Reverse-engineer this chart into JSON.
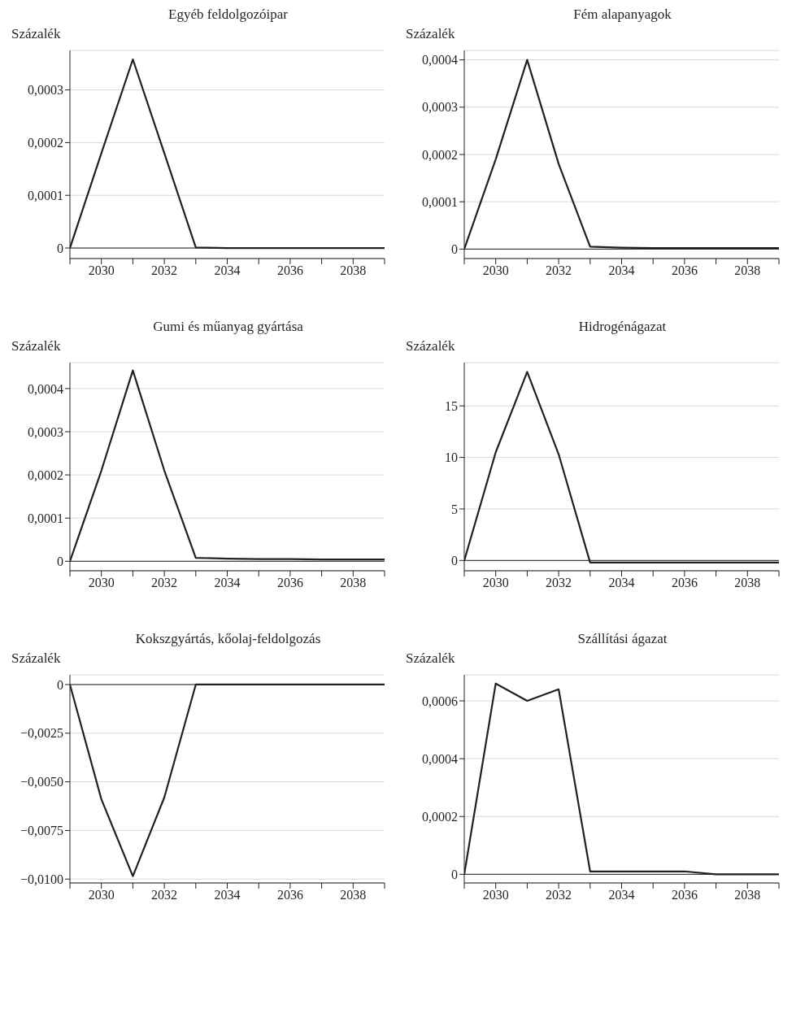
{
  "chart_data": [
    {
      "type": "line",
      "title": "Egyéb feldolgozóipar",
      "ylabel": "Százalék",
      "x": [
        2029,
        2030,
        2031,
        2032,
        2033,
        2034,
        2035,
        2036,
        2037,
        2038,
        2039
      ],
      "color": "#231f20",
      "values": [
        0,
        0.00018,
        0.000358,
        0.00018,
        1e-06,
        0,
        0,
        0,
        0,
        0,
        0
      ],
      "xlim": [
        2029,
        2039
      ],
      "xticks": [
        {
          "value": 2029,
          "label": null
        },
        2030,
        {
          "value": 2031,
          "label": null
        },
        2032,
        {
          "value": 2033,
          "label": null
        },
        2034,
        {
          "value": 2035,
          "label": null
        },
        2036,
        {
          "value": 2037,
          "label": null
        },
        2038,
        {
          "value": 2039,
          "label": null
        }
      ],
      "ylim": [
        -2e-05,
        0.000375
      ],
      "yticks": [
        0,
        {
          "value": 0.0001,
          "label": "0,0001"
        },
        {
          "value": 0.0002,
          "label": "0,0002"
        },
        {
          "value": 0.0003,
          "label": "0,0003"
        }
      ],
      "grid": "y",
      "legend": false,
      "marker": "none",
      "line_style": "solid",
      "ref_lines": [
        {
          "axis": "y",
          "value": 0,
          "color": "#231f20"
        }
      ]
    },
    {
      "type": "line",
      "title": "Fém alapanyagok",
      "ylabel": "Százalék",
      "x": [
        2029,
        2030,
        2031,
        2032,
        2033,
        2034,
        2035,
        2036,
        2037,
        2038,
        2039
      ],
      "color": "#231f20",
      "values": [
        0,
        0.00019,
        0.0004,
        0.00018,
        5e-06,
        3e-06,
        2e-06,
        2e-06,
        2e-06,
        2e-06,
        2e-06
      ],
      "xlim": [
        2029,
        2039
      ],
      "xticks": [
        {
          "value": 2029,
          "label": null
        },
        2030,
        {
          "value": 2031,
          "label": null
        },
        2032,
        {
          "value": 2033,
          "label": null
        },
        2034,
        {
          "value": 2035,
          "label": null
        },
        2036,
        {
          "value": 2037,
          "label": null
        },
        2038,
        {
          "value": 2039,
          "label": null
        }
      ],
      "ylim": [
        -2e-05,
        0.00042
      ],
      "yticks": [
        0,
        {
          "value": 0.0001,
          "label": "0,0001"
        },
        {
          "value": 0.0002,
          "label": "0,0002"
        },
        {
          "value": 0.0003,
          "label": "0,0003"
        },
        {
          "value": 0.0004,
          "label": "0,0004"
        }
      ],
      "grid": "y",
      "legend": false,
      "marker": "none",
      "line_style": "solid",
      "ref_lines": [
        {
          "axis": "y",
          "value": 0,
          "color": "#231f20"
        }
      ]
    },
    {
      "type": "line",
      "title": "Gumi és műanyag gyártása",
      "ylabel": "Százalék",
      "x": [
        2029,
        2030,
        2031,
        2032,
        2033,
        2034,
        2035,
        2036,
        2037,
        2038,
        2039
      ],
      "color": "#231f20",
      "values": [
        0,
        0.00021,
        0.000442,
        0.00021,
        8e-06,
        6e-06,
        5e-06,
        5e-06,
        4e-06,
        4e-06,
        4e-06
      ],
      "xlim": [
        2029,
        2039
      ],
      "xticks": [
        {
          "value": 2029,
          "label": null
        },
        2030,
        {
          "value": 2031,
          "label": null
        },
        2032,
        {
          "value": 2033,
          "label": null
        },
        2034,
        {
          "value": 2035,
          "label": null
        },
        2036,
        {
          "value": 2037,
          "label": null
        },
        2038,
        {
          "value": 2039,
          "label": null
        }
      ],
      "ylim": [
        -2.2e-05,
        0.00046
      ],
      "yticks": [
        0,
        {
          "value": 0.0001,
          "label": "0,0001"
        },
        {
          "value": 0.0002,
          "label": "0,0002"
        },
        {
          "value": 0.0003,
          "label": "0,0003"
        },
        {
          "value": 0.0004,
          "label": "0,0004"
        }
      ],
      "grid": "y",
      "legend": false,
      "marker": "none",
      "line_style": "solid",
      "ref_lines": [
        {
          "axis": "y",
          "value": 0,
          "color": "#231f20"
        }
      ]
    },
    {
      "type": "line",
      "title": "Hidrogénágazat",
      "ylabel": "Százalék",
      "x": [
        2029,
        2030,
        2031,
        2032,
        2033,
        2034,
        2035,
        2036,
        2037,
        2038,
        2039
      ],
      "color": "#231f20",
      "values": [
        0,
        10.5,
        18.3,
        10.3,
        -0.2,
        -0.2,
        -0.2,
        -0.2,
        -0.2,
        -0.2,
        -0.2
      ],
      "xlim": [
        2029,
        2039
      ],
      "xticks": [
        {
          "value": 2029,
          "label": null
        },
        2030,
        {
          "value": 2031,
          "label": null
        },
        2032,
        {
          "value": 2033,
          "label": null
        },
        2034,
        {
          "value": 2035,
          "label": null
        },
        2036,
        {
          "value": 2037,
          "label": null
        },
        2038,
        {
          "value": 2039,
          "label": null
        }
      ],
      "ylim": [
        -1,
        19.2
      ],
      "yticks": [
        0,
        5,
        10,
        15
      ],
      "grid": "y",
      "legend": false,
      "marker": "none",
      "line_style": "solid",
      "ref_lines": [
        {
          "axis": "y",
          "value": 0,
          "color": "#231f20"
        }
      ]
    },
    {
      "type": "line",
      "title": "Kokszgyártás, kőolaj-feldolgozás",
      "ylabel": "Százalék",
      "x": [
        2029,
        2030,
        2031,
        2032,
        2033,
        2034,
        2035,
        2036,
        2037,
        2038,
        2039
      ],
      "color": "#231f20",
      "values": [
        0,
        -0.0059,
        -0.00985,
        -0.0058,
        0,
        0,
        0,
        0,
        0,
        0,
        0
      ],
      "xlim": [
        2029,
        2039
      ],
      "xticks": [
        {
          "value": 2029,
          "label": null
        },
        2030,
        {
          "value": 2031,
          "label": null
        },
        2032,
        {
          "value": 2033,
          "label": null
        },
        2034,
        {
          "value": 2035,
          "label": null
        },
        2036,
        {
          "value": 2037,
          "label": null
        },
        2038,
        {
          "value": 2039,
          "label": null
        }
      ],
      "ylim": [
        -0.0102,
        0.0005
      ],
      "yticks": [
        {
          "value": -0.01,
          "label": "−0,0100"
        },
        {
          "value": -0.0075,
          "label": "−0,0075"
        },
        {
          "value": -0.005,
          "label": "−0,0050"
        },
        {
          "value": -0.0025,
          "label": "−0,0025"
        },
        0
      ],
      "grid": "y",
      "legend": false,
      "marker": "none",
      "line_style": "solid",
      "ref_lines": [
        {
          "axis": "y",
          "value": 0,
          "color": "#231f20"
        }
      ]
    },
    {
      "type": "line",
      "title": "Szállítási ágazat",
      "ylabel": "Százalék",
      "x": [
        2029,
        2030,
        2031,
        2032,
        2033,
        2034,
        2035,
        2036,
        2037,
        2038,
        2039
      ],
      "color": "#231f20",
      "values": [
        0,
        0.00066,
        0.0006,
        0.00064,
        1e-05,
        1e-05,
        1e-05,
        1e-05,
        0,
        0,
        0
      ],
      "xlim": [
        2029,
        2039
      ],
      "xticks": [
        {
          "value": 2029,
          "label": null
        },
        2030,
        {
          "value": 2031,
          "label": null
        },
        2032,
        {
          "value": 2033,
          "label": null
        },
        2034,
        {
          "value": 2035,
          "label": null
        },
        2036,
        {
          "value": 2037,
          "label": null
        },
        2038,
        {
          "value": 2039,
          "label": null
        }
      ],
      "ylim": [
        -3e-05,
        0.00069
      ],
      "yticks": [
        0,
        {
          "value": 0.0002,
          "label": "0,0002"
        },
        {
          "value": 0.0004,
          "label": "0,0004"
        },
        {
          "value": 0.0006,
          "label": "0,0006"
        }
      ],
      "grid": "y",
      "legend": false,
      "marker": "none",
      "line_style": "solid",
      "ref_lines": [
        {
          "axis": "y",
          "value": 0,
          "color": "#231f20"
        }
      ]
    }
  ]
}
